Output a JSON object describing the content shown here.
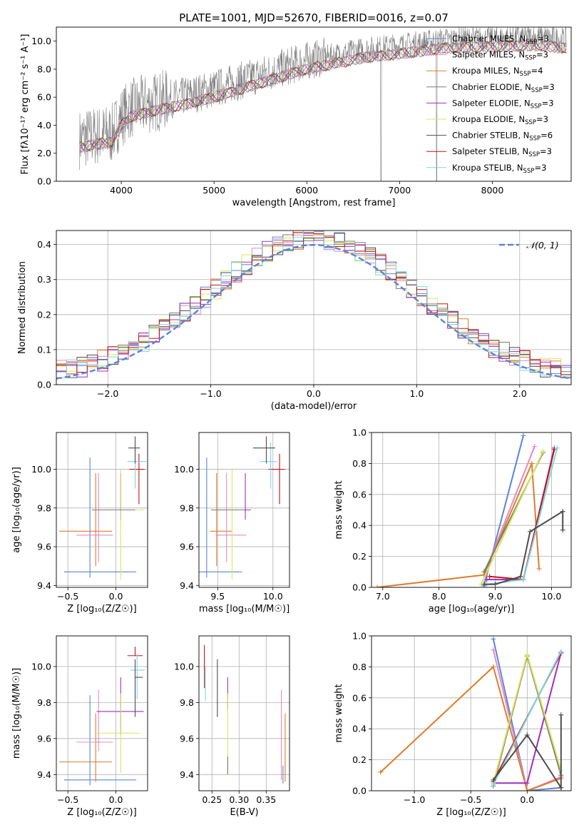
{
  "chart_data": [
    {
      "id": "spectrum",
      "type": "line",
      "title": "PLATE=1001, MJD=52670, FIBERID=0016, z=0.07",
      "xlabel": "wavelength [Angstrom, rest frame]",
      "ylabel": "Flux [fλ10⁻¹⁷ erg cm⁻² s⁻¹ A⁻¹]",
      "xlim": [
        3300,
        8850
      ],
      "ylim": [
        0,
        11
      ],
      "xticks": [
        4000,
        5000,
        6000,
        7000,
        8000
      ],
      "yticks": [
        0,
        2,
        4,
        6,
        8,
        10
      ],
      "legend_position": "right",
      "legend": [
        {
          "name": "Chabrier MILES, N_SSP=3",
          "text": "Chabrier MILES, N",
          "sub": "SSP",
          "tail": "=3",
          "color": "#5b84d6"
        },
        {
          "name": "Salpeter MILES, N_SSP=3",
          "text": "Salpeter MILES, N",
          "sub": "SSP",
          "tail": "=3",
          "color": "#e58ac4"
        },
        {
          "name": "Kroupa MILES, N_SSP=4",
          "text": "Kroupa MILES, N",
          "sub": "SSP",
          "tail": "=4",
          "color": "#e07b2a"
        },
        {
          "name": "Chabrier ELODIE, N_SSP=3",
          "text": "Chabrier ELODIE, N",
          "sub": "SSP",
          "tail": "=3",
          "color": "#7a7a7a"
        },
        {
          "name": "Salpeter ELODIE, N_SSP=3",
          "text": "Salpeter ELODIE, N",
          "sub": "SSP",
          "tail": "=3",
          "color": "#a12dc2"
        },
        {
          "name": "Kroupa ELODIE, N_SSP=3",
          "text": "Kroupa ELODIE, N",
          "sub": "SSP",
          "tail": "=3",
          "color": "#d9e65a"
        },
        {
          "name": "Chabrier STELIB, N_SSP=6",
          "text": "Chabrier STELIB, N",
          "sub": "SSP",
          "tail": "=6",
          "color": "#4d4d4d"
        },
        {
          "name": "Salpeter STELIB, N_SSP=3",
          "text": "Salpeter STELIB, N",
          "sub": "SSP",
          "tail": "=3",
          "color": "#c01515"
        },
        {
          "name": "Kroupa STELIB, N_SSP=3",
          "text": "Kroupa STELIB, N",
          "sub": "SSP",
          "tail": "=3",
          "color": "#7fd6de"
        }
      ],
      "continuum": [
        [
          3550,
          3.0
        ],
        [
          3700,
          3.2
        ],
        [
          3900,
          3.4
        ],
        [
          4000,
          4.6
        ],
        [
          4100,
          5.2
        ],
        [
          4400,
          5.7
        ],
        [
          4700,
          6.1
        ],
        [
          5000,
          6.6
        ],
        [
          5200,
          7.0
        ],
        [
          5500,
          7.6
        ],
        [
          5800,
          8.2
        ],
        [
          6000,
          8.6
        ],
        [
          6300,
          9.0
        ],
        [
          6600,
          9.4
        ],
        [
          7000,
          9.7
        ],
        [
          7500,
          10.1
        ],
        [
          8000,
          10.2
        ],
        [
          8500,
          10.3
        ],
        [
          8800,
          10.1
        ]
      ]
    },
    {
      "id": "residuals",
      "type": "histogram",
      "xlabel": "(data-model)/error",
      "ylabel": "Normed distribution",
      "xlim": [
        -2.5,
        2.5
      ],
      "ylim": [
        0,
        0.44
      ],
      "xticks": [
        -2,
        -1,
        0,
        1,
        2
      ],
      "yticks": [
        0.0,
        0.1,
        0.2,
        0.3,
        0.4
      ],
      "legend": [
        {
          "name": "N(0,1)",
          "label": "𝒩(0, 1)",
          "color": "#5b84d6"
        }
      ],
      "gaussian": {
        "mean": 0,
        "sigma": 1
      }
    },
    {
      "id": "age-vs-Z",
      "type": "errorbar",
      "xlabel": "Z [log₁₀(Z/Z☉)]",
      "ylabel": "age  [log₁₀(age/yr)]",
      "xlim": [
        -0.62,
        0.33
      ],
      "ylim": [
        9.39,
        10.19
      ],
      "xticks": [
        -0.5,
        0.0
      ],
      "yticks": [
        9.4,
        9.6,
        9.8,
        10.0
      ],
      "points": [
        {
          "color": "#5b84d6",
          "x": -0.27,
          "xerr": [
            0.27,
            0.48
          ],
          "y": 9.47,
          "yerr": [
            0.03,
            0.59
          ]
        },
        {
          "color": "#e07b2a",
          "x": -0.21,
          "xerr": [
            0.38,
            0.17
          ],
          "y": 9.68,
          "yerr": [
            0.18,
            0.3
          ]
        },
        {
          "color": "#e58ac4",
          "x": -0.18,
          "xerr": [
            0.23,
            0.15
          ],
          "y": 9.66,
          "yerr": [
            0.14,
            0.32
          ]
        },
        {
          "color": "#a12dc2",
          "x": 0.05,
          "xerr": [
            0.25,
            0.24
          ],
          "y": 9.79,
          "yerr": [
            0.05,
            0.19
          ]
        },
        {
          "color": "#d9e65a",
          "x": 0.05,
          "xerr": [
            0.3,
            0.25
          ],
          "y": 9.79,
          "yerr": [
            0.36,
            0.21
          ]
        },
        {
          "color": "#7a7a7a",
          "x": 0.0,
          "xerr": [
            0.25,
            0.2
          ],
          "y": 9.79,
          "yerr": [
            0.0,
            0.0
          ]
        },
        {
          "color": "#c01515",
          "x": 0.24,
          "xerr": [
            0.1,
            0.06
          ],
          "y": 10.0,
          "yerr": [
            0.18,
            0.08
          ]
        },
        {
          "color": "#7fd6de",
          "x": 0.2,
          "xerr": [
            0.08,
            0.12
          ],
          "y": 10.04,
          "yerr": [
            0.14,
            0.1
          ]
        },
        {
          "color": "#4d4d4d",
          "x": 0.2,
          "xerr": [
            0.07,
            0.05
          ],
          "y": 10.11,
          "yerr": [
            0.08,
            0.06
          ]
        }
      ]
    },
    {
      "id": "age-vs-mass",
      "type": "errorbar",
      "xlabel": "mass [log₁₀(M/M☉)]",
      "ylabel": "",
      "xlim": [
        9.33,
        10.15
      ],
      "ylim": [
        9.39,
        10.19
      ],
      "xticks": [
        9.5,
        10.0
      ],
      "yticks": [
        9.4,
        9.6,
        9.8,
        10.0
      ],
      "points": [
        {
          "color": "#5b84d6",
          "x": 9.4,
          "xerr": [
            0.07,
            0.32
          ],
          "y": 9.47,
          "yerr": [
            0.03,
            0.59
          ]
        },
        {
          "color": "#e07b2a",
          "x": 9.49,
          "xerr": [
            0.06,
            0.14
          ],
          "y": 9.68,
          "yerr": [
            0.18,
            0.3
          ]
        },
        {
          "color": "#e58ac4",
          "x": 9.58,
          "xerr": [
            0.1,
            0.18
          ],
          "y": 9.66,
          "yerr": [
            0.14,
            0.32
          ]
        },
        {
          "color": "#a12dc2",
          "x": 9.75,
          "xerr": [
            0.28,
            0.05
          ],
          "y": 9.79,
          "yerr": [
            0.05,
            0.19
          ]
        },
        {
          "color": "#d9e65a",
          "x": 9.63,
          "xerr": [
            0.19,
            0.09
          ],
          "y": 9.79,
          "yerr": [
            0.36,
            0.21
          ]
        },
        {
          "color": "#7a7a7a",
          "x": 9.62,
          "xerr": [
            0.18,
            0.12
          ],
          "y": 9.79,
          "yerr": [
            0.0,
            0.0
          ]
        },
        {
          "color": "#c01515",
          "x": 10.06,
          "xerr": [
            0.1,
            0.05
          ],
          "y": 10.0,
          "yerr": [
            0.18,
            0.08
          ]
        },
        {
          "color": "#7fd6de",
          "x": 9.98,
          "xerr": [
            0.1,
            0.06
          ],
          "y": 10.04,
          "yerr": [
            0.14,
            0.1
          ]
        },
        {
          "color": "#4d4d4d",
          "x": 9.94,
          "xerr": [
            0.12,
            0.08
          ],
          "y": 10.11,
          "yerr": [
            0.08,
            0.06
          ]
        }
      ]
    },
    {
      "id": "weight-vs-age",
      "type": "line",
      "xlabel": "age  [log₁₀(age/yr)]",
      "ylabel": "mass weight",
      "xlim": [
        6.8,
        10.35
      ],
      "ylim": [
        0,
        1
      ],
      "xticks": [
        7,
        8,
        9,
        10
      ],
      "yticks": [
        0.0,
        0.2,
        0.4,
        0.6,
        0.8,
        1.0
      ],
      "series": [
        {
          "color": "#5b84d6",
          "points": [
            [
              8.8,
              0.01
            ],
            [
              9.5,
              0.98
            ]
          ]
        },
        {
          "color": "#e58ac4",
          "points": [
            [
              8.8,
              0.08
            ],
            [
              9.7,
              0.91
            ]
          ]
        },
        {
          "color": "#e07b2a",
          "points": [
            [
              6.9,
              0.0
            ],
            [
              8.8,
              0.08
            ],
            [
              9.65,
              0.8
            ],
            [
              9.78,
              0.12
            ]
          ]
        },
        {
          "color": "#7a7a7a",
          "points": [
            [
              8.8,
              0.1
            ],
            [
              9.85,
              0.87
            ]
          ]
        },
        {
          "color": "#a12dc2",
          "points": [
            [
              8.85,
              0.05
            ],
            [
              9.5,
              0.05
            ],
            [
              10.05,
              0.9
            ]
          ]
        },
        {
          "color": "#d9e65a",
          "points": [
            [
              8.75,
              0.02
            ],
            [
              9.85,
              0.88
            ]
          ]
        },
        {
          "color": "#c01515",
          "points": [
            [
              8.9,
              0.07
            ],
            [
              9.5,
              0.05
            ],
            [
              10.05,
              0.89
            ]
          ]
        },
        {
          "color": "#7fd6de",
          "points": [
            [
              8.85,
              0.02
            ],
            [
              9.5,
              0.05
            ],
            [
              10.1,
              0.9
            ]
          ]
        },
        {
          "color": "#4d4d4d",
          "points": [
            [
              8.8,
              0.02
            ],
            [
              9.0,
              0.02
            ],
            [
              9.45,
              0.07
            ],
            [
              9.62,
              0.36
            ],
            [
              10.2,
              0.49
            ],
            [
              10.2,
              0.37
            ]
          ]
        }
      ]
    },
    {
      "id": "mass-vs-Z",
      "type": "errorbar",
      "xlabel": "Z [log₁₀(Z/Z☉)]",
      "ylabel": "mass [log₁₀(M/M☉)]",
      "xlim": [
        -0.62,
        0.33
      ],
      "ylim": [
        9.31,
        10.17
      ],
      "xticks": [
        -0.5,
        0.0
      ],
      "yticks": [
        9.4,
        9.6,
        9.8,
        10.0
      ],
      "points": [
        {
          "color": "#5b84d6",
          "x": -0.27,
          "xerr": [
            0.27,
            0.48
          ],
          "y": 9.37,
          "yerr": [
            0.03,
            0.47
          ]
        },
        {
          "color": "#e07b2a",
          "x": -0.21,
          "xerr": [
            0.38,
            0.17
          ],
          "y": 9.47,
          "yerr": [
            0.11,
            0.27
          ]
        },
        {
          "color": "#e58ac4",
          "x": -0.18,
          "xerr": [
            0.23,
            0.15
          ],
          "y": 9.58,
          "yerr": [
            0.05,
            0.29
          ]
        },
        {
          "color": "#a12dc2",
          "x": 0.05,
          "xerr": [
            0.25,
            0.24
          ],
          "y": 9.75,
          "yerr": [
            0.13,
            0.19
          ]
        },
        {
          "color": "#d9e65a",
          "x": 0.05,
          "xerr": [
            0.25,
            0.2
          ],
          "y": 9.63,
          "yerr": [
            0.22,
            0.22
          ]
        },
        {
          "color": "#c01515",
          "x": 0.2,
          "xerr": [
            0.08,
            0.08
          ],
          "y": 10.06,
          "yerr": [
            0.0,
            0.05
          ]
        },
        {
          "color": "#7fd6de",
          "x": 0.22,
          "xerr": [
            0.07,
            0.08
          ],
          "y": 9.98,
          "yerr": [
            0.16,
            0.09
          ]
        },
        {
          "color": "#4d4d4d",
          "x": 0.2,
          "xerr": [
            0.0,
            0.08
          ],
          "y": 9.94,
          "yerr": [
            0.22,
            0.1
          ]
        }
      ]
    },
    {
      "id": "mass-vs-EBV",
      "type": "errorbar",
      "xlabel": "E(B-V)",
      "ylabel": "",
      "xlim": [
        0.226,
        0.393
      ],
      "ylim": [
        9.31,
        10.17
      ],
      "xticks": [
        0.25,
        0.3,
        0.35
      ],
      "xticklabels": [
        "0.25",
        "0.30",
        "0.35"
      ],
      "yticks": [
        9.4,
        9.6,
        9.8,
        10.0
      ],
      "points": [
        {
          "color": "#c01515",
          "x": 0.236,
          "xerr": [
            0,
            0
          ],
          "y": 10.0,
          "yerr": [
            0.12,
            0.12
          ]
        },
        {
          "color": "#7fd6de",
          "x": 0.238,
          "xerr": [
            0,
            0
          ],
          "y": 9.95,
          "yerr": [
            0.14,
            0.05
          ]
        },
        {
          "color": "#4d4d4d",
          "x": 0.26,
          "xerr": [
            0,
            0
          ],
          "y": 9.88,
          "yerr": [
            0.16,
            0.16
          ]
        },
        {
          "color": "#a12dc2",
          "x": 0.279,
          "xerr": [
            0,
            0
          ],
          "y": 9.85,
          "yerr": [
            0.09,
            0.09
          ]
        },
        {
          "color": "#d9e65a",
          "x": 0.279,
          "xerr": [
            0,
            0
          ],
          "y": 9.63,
          "yerr": [
            0.22,
            0.22
          ]
        },
        {
          "color": "#7a7a7a",
          "x": 0.279,
          "xerr": [
            0,
            0
          ],
          "y": 9.45,
          "yerr": [
            0.05,
            0.05
          ]
        },
        {
          "color": "#e58ac4",
          "x": 0.378,
          "xerr": [
            0,
            0
          ],
          "y": 9.58,
          "yerr": [
            0.21,
            0.29
          ]
        },
        {
          "color": "#5b84d6",
          "x": 0.381,
          "xerr": [
            0,
            0
          ],
          "y": 9.4,
          "yerr": [
            0.05,
            0.05
          ]
        },
        {
          "color": "#e07b2a",
          "x": 0.385,
          "xerr": [
            0,
            0
          ],
          "y": 9.54,
          "yerr": [
            0.18,
            0.2
          ]
        }
      ]
    },
    {
      "id": "weight-vs-Z",
      "type": "line",
      "xlabel": "Z [log₁₀(Z/Z☉)]",
      "ylabel": "mass weight",
      "xlim": [
        -1.38,
        0.39
      ],
      "ylim": [
        0,
        1
      ],
      "xticks": [
        -1.0,
        -0.5,
        0.0
      ],
      "xticklabels": [
        "−1.0",
        "−0.5",
        "0.0"
      ],
      "yticks": [
        0.0,
        0.2,
        0.4,
        0.6,
        0.8,
        1.0
      ],
      "series": [
        {
          "color": "#5b84d6",
          "points": [
            [
              -0.3,
              0.98
            ],
            [
              0.0,
              0.0
            ],
            [
              0.3,
              0.02
            ]
          ]
        },
        {
          "color": "#e58ac4",
          "points": [
            [
              -0.3,
              0.91
            ],
            [
              0.0,
              0.0
            ],
            [
              0.3,
              0.09
            ]
          ]
        },
        {
          "color": "#e07b2a",
          "points": [
            [
              -1.3,
              0.12
            ],
            [
              -0.3,
              0.8
            ],
            [
              0.0,
              0.0
            ],
            [
              0.3,
              0.08
            ]
          ]
        },
        {
          "color": "#7a7a7a",
          "points": [
            [
              -0.3,
              0.03
            ],
            [
              0.0,
              0.87
            ],
            [
              0.3,
              0.1
            ]
          ]
        },
        {
          "color": "#a12dc2",
          "points": [
            [
              -0.3,
              0.05
            ],
            [
              0.0,
              0.05
            ],
            [
              0.3,
              0.89
            ]
          ]
        },
        {
          "color": "#d9e65a",
          "points": [
            [
              -0.3,
              0.05
            ],
            [
              0.0,
              0.88
            ],
            [
              0.3,
              0.13
            ]
          ]
        },
        {
          "color": "#c01515",
          "points": [
            [
              -0.3,
              0.06
            ],
            [
              0.3,
              0.89
            ]
          ]
        },
        {
          "color": "#7fd6de",
          "points": [
            [
              -0.3,
              0.04
            ],
            [
              0.3,
              0.9
            ]
          ]
        },
        {
          "color": "#4d4d4d",
          "points": [
            [
              -0.3,
              0.07
            ],
            [
              0.0,
              0.36
            ],
            [
              0.3,
              0.02
            ],
            [
              0.3,
              0.49
            ]
          ]
        }
      ]
    }
  ]
}
